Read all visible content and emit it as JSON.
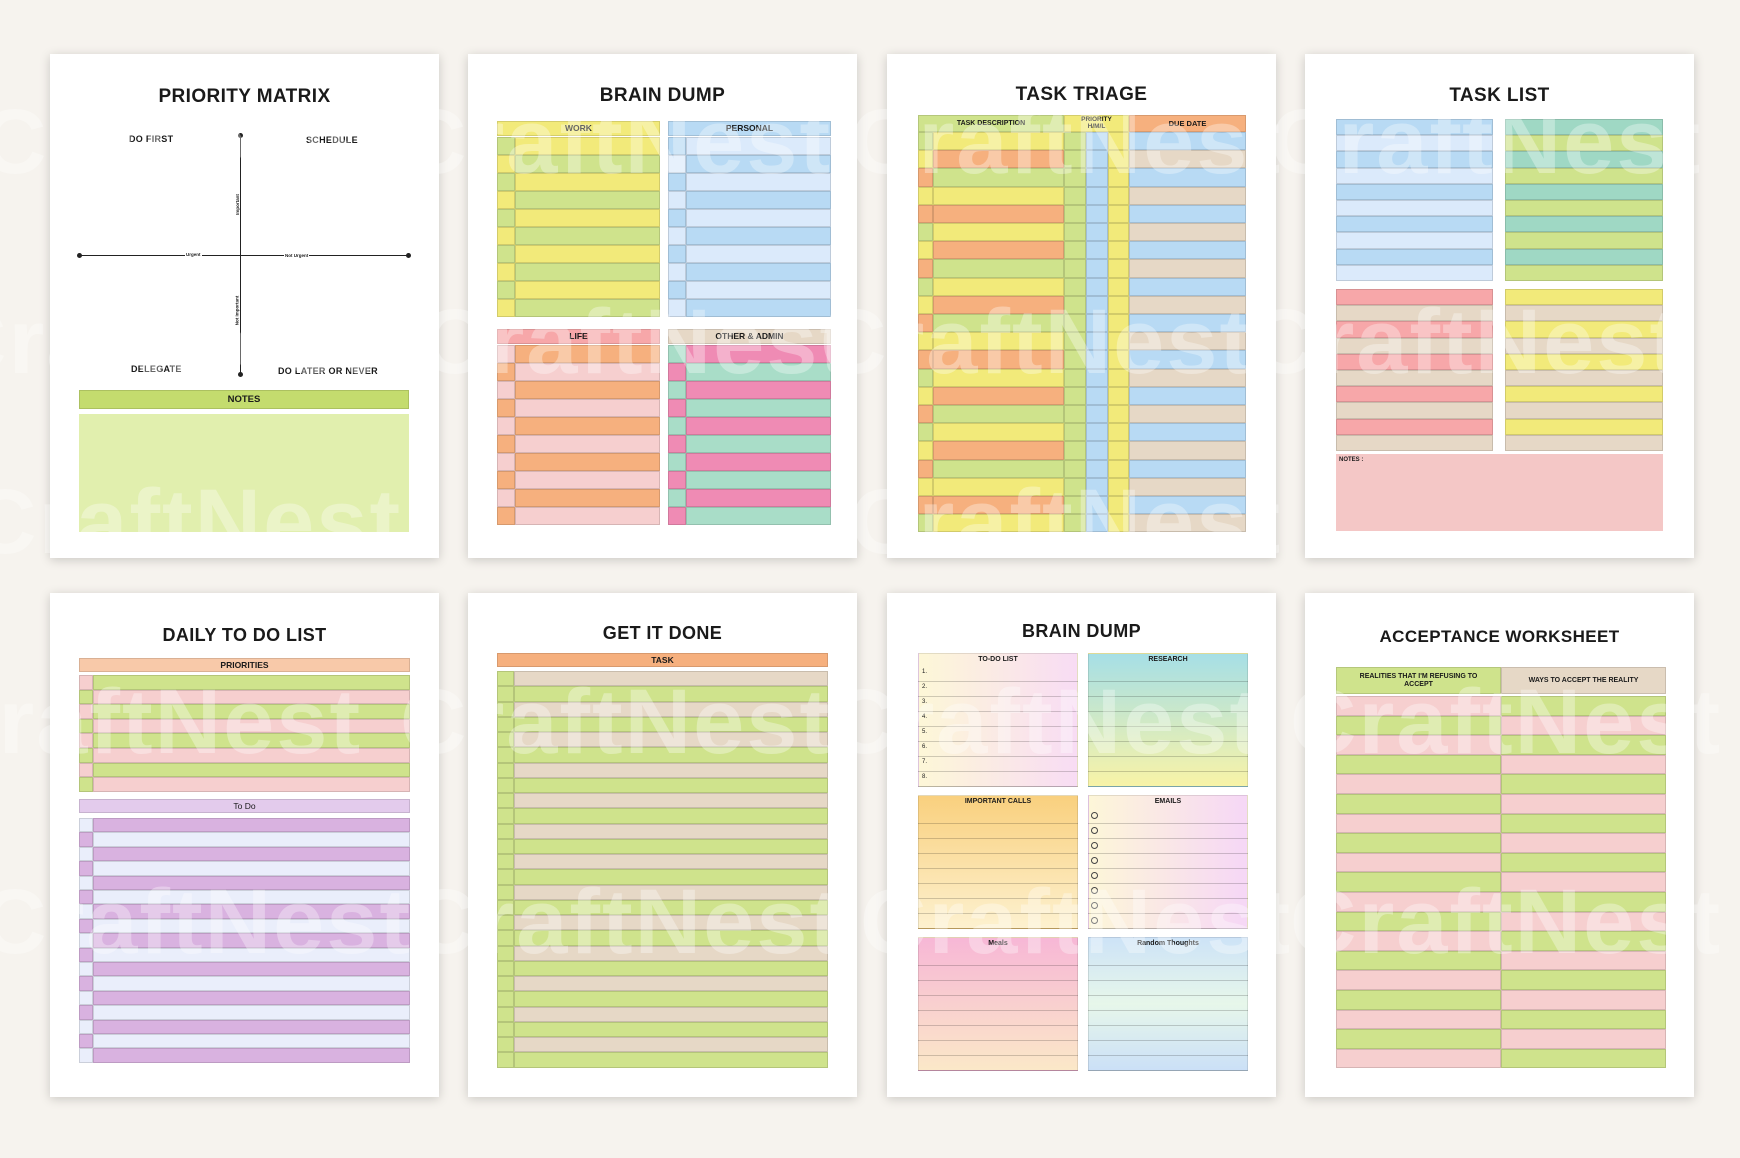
{
  "watermark": "CraftNest",
  "colors": {
    "background": "#f6f3ee",
    "yellow": "#f2ea7a",
    "lime": "#cfe38c",
    "blue": "#b8daf4",
    "lightblue": "#dbeafb",
    "peach": "#f6b07e",
    "pink": "#f6cfcf",
    "hotpink": "#ef8bb4",
    "mint": "#a9ddc8",
    "beige": "#e6d8c6",
    "teal": "#9fd8c4",
    "salmon": "#f7a7a9",
    "purple": "#d9b2e0",
    "lavender": "#eaeefb"
  },
  "pages": {
    "priority_matrix": {
      "title": "PRIORITY MATRIX",
      "do_first": "DO FIRST",
      "schedule": "SCHEDULE",
      "delegate": "DELEGATE",
      "do_later": "DO LATER OR NEVER",
      "axis_urgent": "Urgent",
      "axis_not_urgent": "Not Urgent",
      "axis_important": "Important",
      "axis_not_important": "Not Important",
      "notes": "NOTES"
    },
    "brain_dump_1": {
      "title": "BRAIN DUMP",
      "work": "WORK",
      "personal": "PERSONAL",
      "life": "LIFE",
      "other_admin": "OTHER & ADMIN"
    },
    "task_triage": {
      "title": "TASK TRIAGE",
      "task_description": "TASK DESCRIPTION",
      "priority": "PRIORITY H/M/L",
      "due_date": "DUE DATE"
    },
    "task_list": {
      "title": "TASK LIST",
      "notes": "NOTES :"
    },
    "daily_todo": {
      "title": "DAILY TO DO LIST",
      "priorities": "PRIORITIES",
      "todo": "To Do"
    },
    "get_it_done": {
      "title": "GET IT DONE",
      "task": "TASK"
    },
    "brain_dump_2": {
      "title": "BRAIN DUMP",
      "todo_list": "TO-DO LIST",
      "research": "RESEARCH",
      "important_calls": "IMPORTANT CALLS",
      "emails": "EMAILS",
      "meals": "Meals",
      "random_thoughts": "Random Thoughts",
      "numbers": [
        "1.",
        "2.",
        "3.",
        "4.",
        "5.",
        "6.",
        "7.",
        "8."
      ]
    },
    "acceptance": {
      "title": "ACCEPTANCE WORKSHEET",
      "col1": "REALITIES THAT I'M REFUSING TO ACCEPT",
      "col2": "WAYS TO ACCEPT THE REALITY"
    }
  }
}
